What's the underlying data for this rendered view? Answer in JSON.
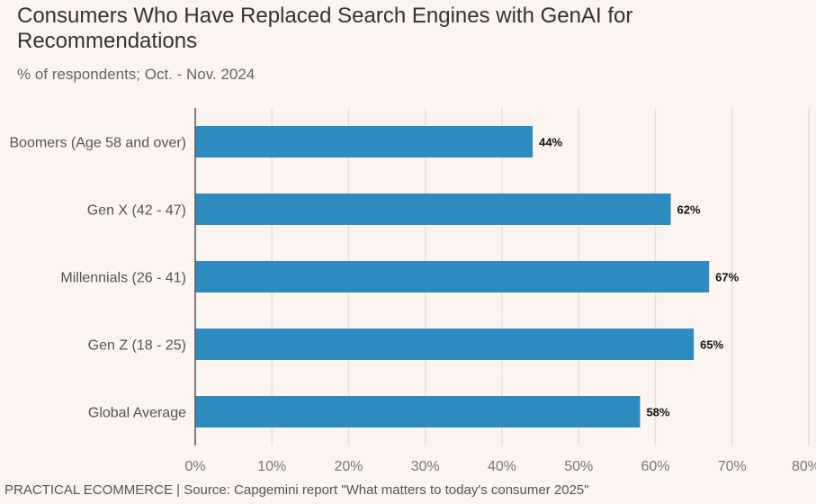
{
  "chart_data": {
    "type": "bar",
    "orientation": "horizontal",
    "title": "Consumers Who Have Replaced Search Engines with GenAI for Recommendations",
    "subtitle": "% of respondents; Oct. - Nov. 2024",
    "categories": [
      "Boomers (Age 58 and over)",
      "Gen X (42 - 47)",
      "Millennials (26 - 41)",
      "Gen Z (18 - 25)",
      "Global Average"
    ],
    "values": [
      44,
      62,
      67,
      65,
      58
    ],
    "data_labels": [
      "44%",
      "62%",
      "67%",
      "65%",
      "58%"
    ],
    "xlim": [
      0,
      80
    ],
    "x_ticks": [
      0,
      10,
      20,
      30,
      40,
      50,
      60,
      70,
      80
    ],
    "x_tick_labels": [
      "0%",
      "10%",
      "20%",
      "30%",
      "40%",
      "50%",
      "60%",
      "70%",
      "80%"
    ],
    "grid": "vertical",
    "bar_color": "#2e8bc0",
    "source": "PRACTICAL ECOMMERCE | Source: Capgemini report \"What matters to today's consumer 2025\""
  }
}
